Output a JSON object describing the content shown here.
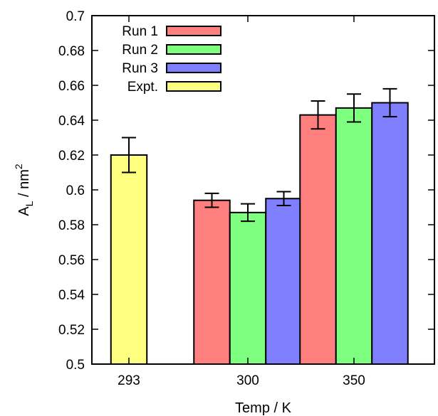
{
  "chart_data": {
    "type": "bar",
    "xlabel": "Temp / K",
    "ylabel": {
      "main": "A",
      "sub": "L",
      "unit": " / nm",
      "sup": "2"
    },
    "ylim": [
      0.5,
      0.7
    ],
    "yticks": [
      "0.5",
      "0.52",
      "0.54",
      "0.56",
      "0.58",
      "0.6",
      "0.62",
      "0.64",
      "0.66",
      "0.68",
      "0.7"
    ],
    "categories": [
      "293",
      "300",
      "350"
    ],
    "grid": false,
    "legend_position": "top-left",
    "series": [
      {
        "name": "Run 1",
        "color": "#ff7f7f",
        "values": [
          null,
          0.594,
          0.643
        ],
        "errors": [
          null,
          0.004,
          0.008
        ]
      },
      {
        "name": "Run 2",
        "color": "#7fff7f",
        "values": [
          null,
          0.587,
          0.647
        ],
        "errors": [
          null,
          0.005,
          0.008
        ]
      },
      {
        "name": "Run 3",
        "color": "#7f7fff",
        "values": [
          null,
          0.595,
          0.65
        ],
        "errors": [
          null,
          0.004,
          0.008
        ]
      },
      {
        "name": "Expt.",
        "color": "#ffff7f",
        "values": [
          0.62,
          null,
          null
        ],
        "errors": [
          0.01,
          null,
          null
        ]
      }
    ]
  }
}
